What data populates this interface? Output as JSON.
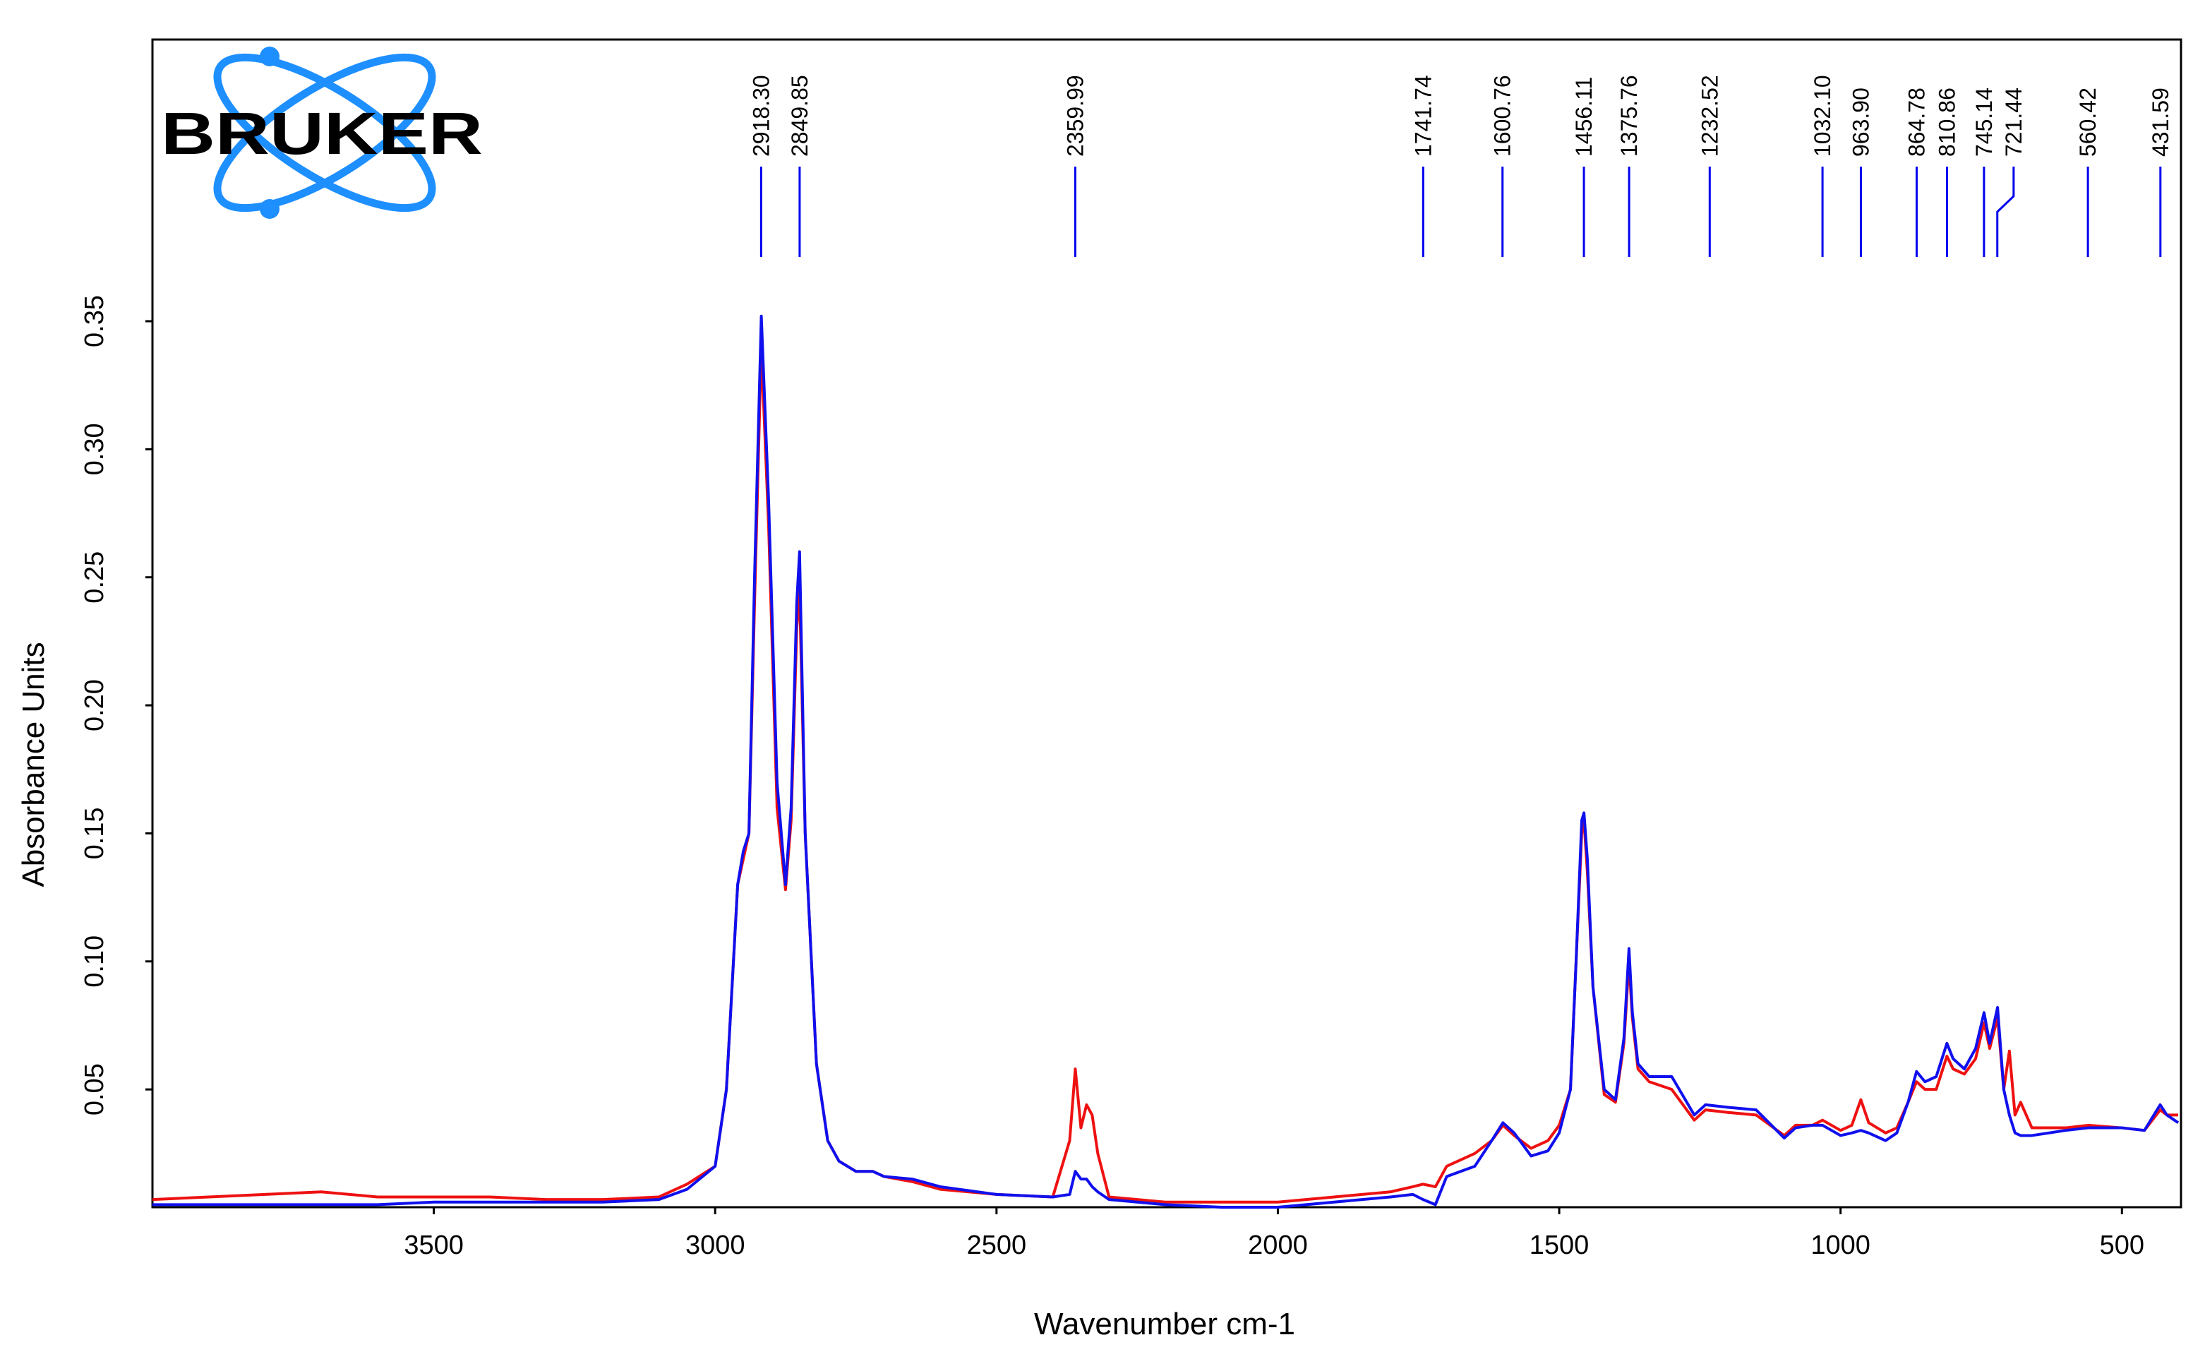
{
  "chart_data": {
    "type": "line",
    "logo": "BRUKER",
    "xlabel": "Wavenumber cm-1",
    "ylabel": "Absorbance Units",
    "xlim": [
      4000,
      395
    ],
    "xticks": [
      3500,
      3000,
      2500,
      2000,
      1500,
      1000,
      500
    ],
    "ylim": [
      0.004,
      0.46
    ],
    "yticks": [
      0.05,
      {
        "value": 0.1,
        "label": "0.10"
      },
      0.15,
      {
        "value": 0.2,
        "label": "0.20"
      },
      0.25,
      {
        "value": 0.3,
        "label": "0.30"
      },
      0.35
    ],
    "peak_color": "#0000ee",
    "peaks": [
      {
        "value": 2918.3,
        "label": "2918.30"
      },
      {
        "value": 2849.85,
        "label": "2849.85"
      },
      {
        "value": 2359.99,
        "label": "2359.99"
      },
      {
        "value": 1741.74,
        "label": "1741.74"
      },
      {
        "value": 1600.76,
        "label": "1600.76"
      },
      {
        "value": 1456.11,
        "label": "1456.11"
      },
      {
        "value": 1375.76,
        "label": "1375.76"
      },
      {
        "value": 1232.52,
        "label": "1232.52"
      },
      {
        "value": 1032.1,
        "label": "1032.10"
      },
      {
        "value": 963.9,
        "label": "963.90"
      },
      {
        "value": 864.78,
        "label": "864.78"
      },
      {
        "value": 810.86,
        "label": "810.86"
      },
      {
        "value": 745.14,
        "label": "745.14"
      },
      {
        "value": 721.44,
        "label": "721.44"
      },
      {
        "value": 560.42,
        "label": "560.42"
      },
      {
        "value": 431.59,
        "label": "431.59"
      }
    ],
    "x": [
      4000,
      3900,
      3800,
      3700,
      3600,
      3500,
      3400,
      3300,
      3200,
      3100,
      3050,
      3000,
      2980,
      2960,
      2950,
      2940,
      2930,
      2918,
      2905,
      2890,
      2875,
      2865,
      2855,
      2850,
      2840,
      2820,
      2800,
      2780,
      2750,
      2720,
      2700,
      2650,
      2600,
      2500,
      2400,
      2370,
      2360,
      2350,
      2340,
      2330,
      2320,
      2300,
      2250,
      2200,
      2100,
      2000,
      1900,
      1800,
      1760,
      1742,
      1720,
      1700,
      1650,
      1620,
      1600,
      1580,
      1550,
      1520,
      1500,
      1480,
      1470,
      1460,
      1456,
      1450,
      1440,
      1420,
      1400,
      1385,
      1376,
      1370,
      1360,
      1340,
      1300,
      1260,
      1240,
      1200,
      1150,
      1100,
      1080,
      1050,
      1032,
      1000,
      980,
      964,
      950,
      920,
      900,
      880,
      865,
      850,
      830,
      811,
      800,
      780,
      760,
      745,
      735,
      721,
      710,
      700,
      690,
      680,
      660,
      600,
      560,
      500,
      460,
      432,
      420,
      400
    ],
    "series": [
      {
        "color": "#ee1111",
        "values": [
          0.007,
          0.008,
          0.009,
          0.01,
          0.008,
          0.008,
          0.008,
          0.007,
          0.007,
          0.008,
          0.013,
          0.02,
          0.05,
          0.13,
          0.14,
          0.15,
          0.24,
          0.34,
          0.27,
          0.16,
          0.128,
          0.155,
          0.23,
          0.245,
          0.15,
          0.06,
          0.03,
          0.022,
          0.018,
          0.018,
          0.016,
          0.014,
          0.011,
          0.009,
          0.008,
          0.03,
          0.058,
          0.035,
          0.044,
          0.04,
          0.025,
          0.008,
          0.007,
          0.006,
          0.006,
          0.006,
          0.008,
          0.01,
          0.012,
          0.013,
          0.012,
          0.02,
          0.025,
          0.03,
          0.036,
          0.032,
          0.027,
          0.03,
          0.036,
          0.05,
          0.1,
          0.15,
          0.155,
          0.135,
          0.09,
          0.048,
          0.045,
          0.068,
          0.1,
          0.078,
          0.058,
          0.053,
          0.05,
          0.038,
          0.042,
          0.041,
          0.04,
          0.032,
          0.036,
          0.036,
          0.038,
          0.034,
          0.036,
          0.046,
          0.037,
          0.033,
          0.035,
          0.045,
          0.053,
          0.05,
          0.05,
          0.063,
          0.058,
          0.056,
          0.062,
          0.076,
          0.066,
          0.078,
          0.05,
          0.065,
          0.04,
          0.045,
          0.035,
          0.035,
          0.036,
          0.035,
          0.034,
          0.042,
          0.04,
          0.04
        ]
      },
      {
        "color": "#1010ee",
        "values": [
          0.005,
          0.005,
          0.005,
          0.005,
          0.005,
          0.006,
          0.006,
          0.006,
          0.006,
          0.007,
          0.011,
          0.02,
          0.05,
          0.13,
          0.143,
          0.15,
          0.25,
          0.352,
          0.28,
          0.17,
          0.13,
          0.16,
          0.24,
          0.26,
          0.15,
          0.06,
          0.03,
          0.022,
          0.018,
          0.018,
          0.016,
          0.015,
          0.012,
          0.009,
          0.008,
          0.009,
          0.018,
          0.015,
          0.015,
          0.012,
          0.01,
          0.007,
          0.006,
          0.005,
          0.004,
          0.004,
          0.006,
          0.008,
          0.009,
          0.007,
          0.005,
          0.016,
          0.02,
          0.03,
          0.037,
          0.033,
          0.024,
          0.026,
          0.033,
          0.05,
          0.1,
          0.155,
          0.158,
          0.14,
          0.09,
          0.05,
          0.046,
          0.07,
          0.105,
          0.08,
          0.06,
          0.055,
          0.055,
          0.04,
          0.044,
          0.043,
          0.042,
          0.031,
          0.035,
          0.036,
          0.036,
          0.032,
          0.033,
          0.034,
          0.033,
          0.03,
          0.033,
          0.045,
          0.057,
          0.053,
          0.055,
          0.068,
          0.062,
          0.058,
          0.066,
          0.08,
          0.068,
          0.082,
          0.05,
          0.04,
          0.033,
          0.032,
          0.032,
          0.034,
          0.035,
          0.035,
          0.034,
          0.044,
          0.04,
          0.037
        ]
      }
    ]
  }
}
